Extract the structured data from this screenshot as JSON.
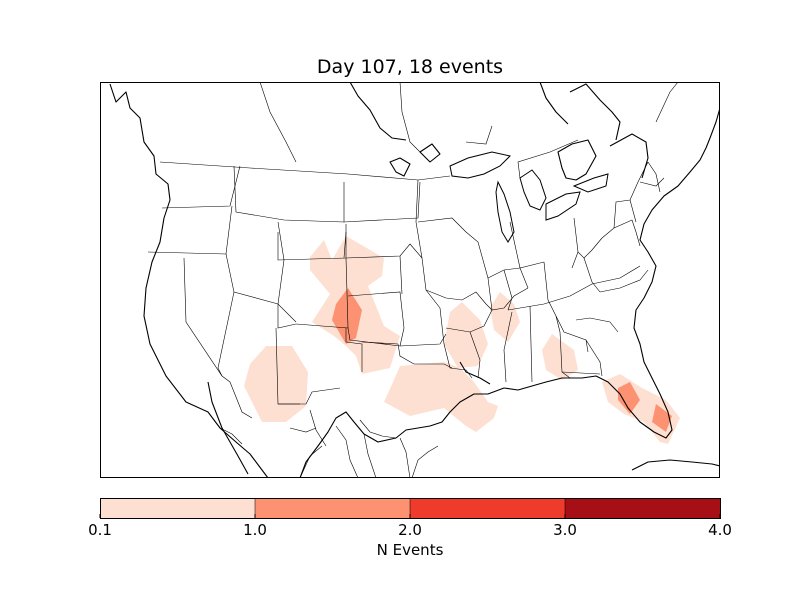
{
  "title": "Day 107, 18 events",
  "colorbar": {
    "label": "N Events",
    "ticks": [
      "0.1",
      "1.0",
      "2.0",
      "3.0",
      "4.0"
    ],
    "bins": [
      {
        "from": 0.1,
        "to": 1.0,
        "color": "#fee0d2"
      },
      {
        "from": 1.0,
        "to": 2.0,
        "color": "#fc9272"
      },
      {
        "from": 2.0,
        "to": 3.0,
        "color": "#ef3b2c"
      },
      {
        "from": 3.0,
        "to": 4.0,
        "color": "#a50f15"
      }
    ]
  },
  "colors": {
    "low": "#fee0d2",
    "mid": "#fc9272",
    "outline": "#000000"
  }
}
